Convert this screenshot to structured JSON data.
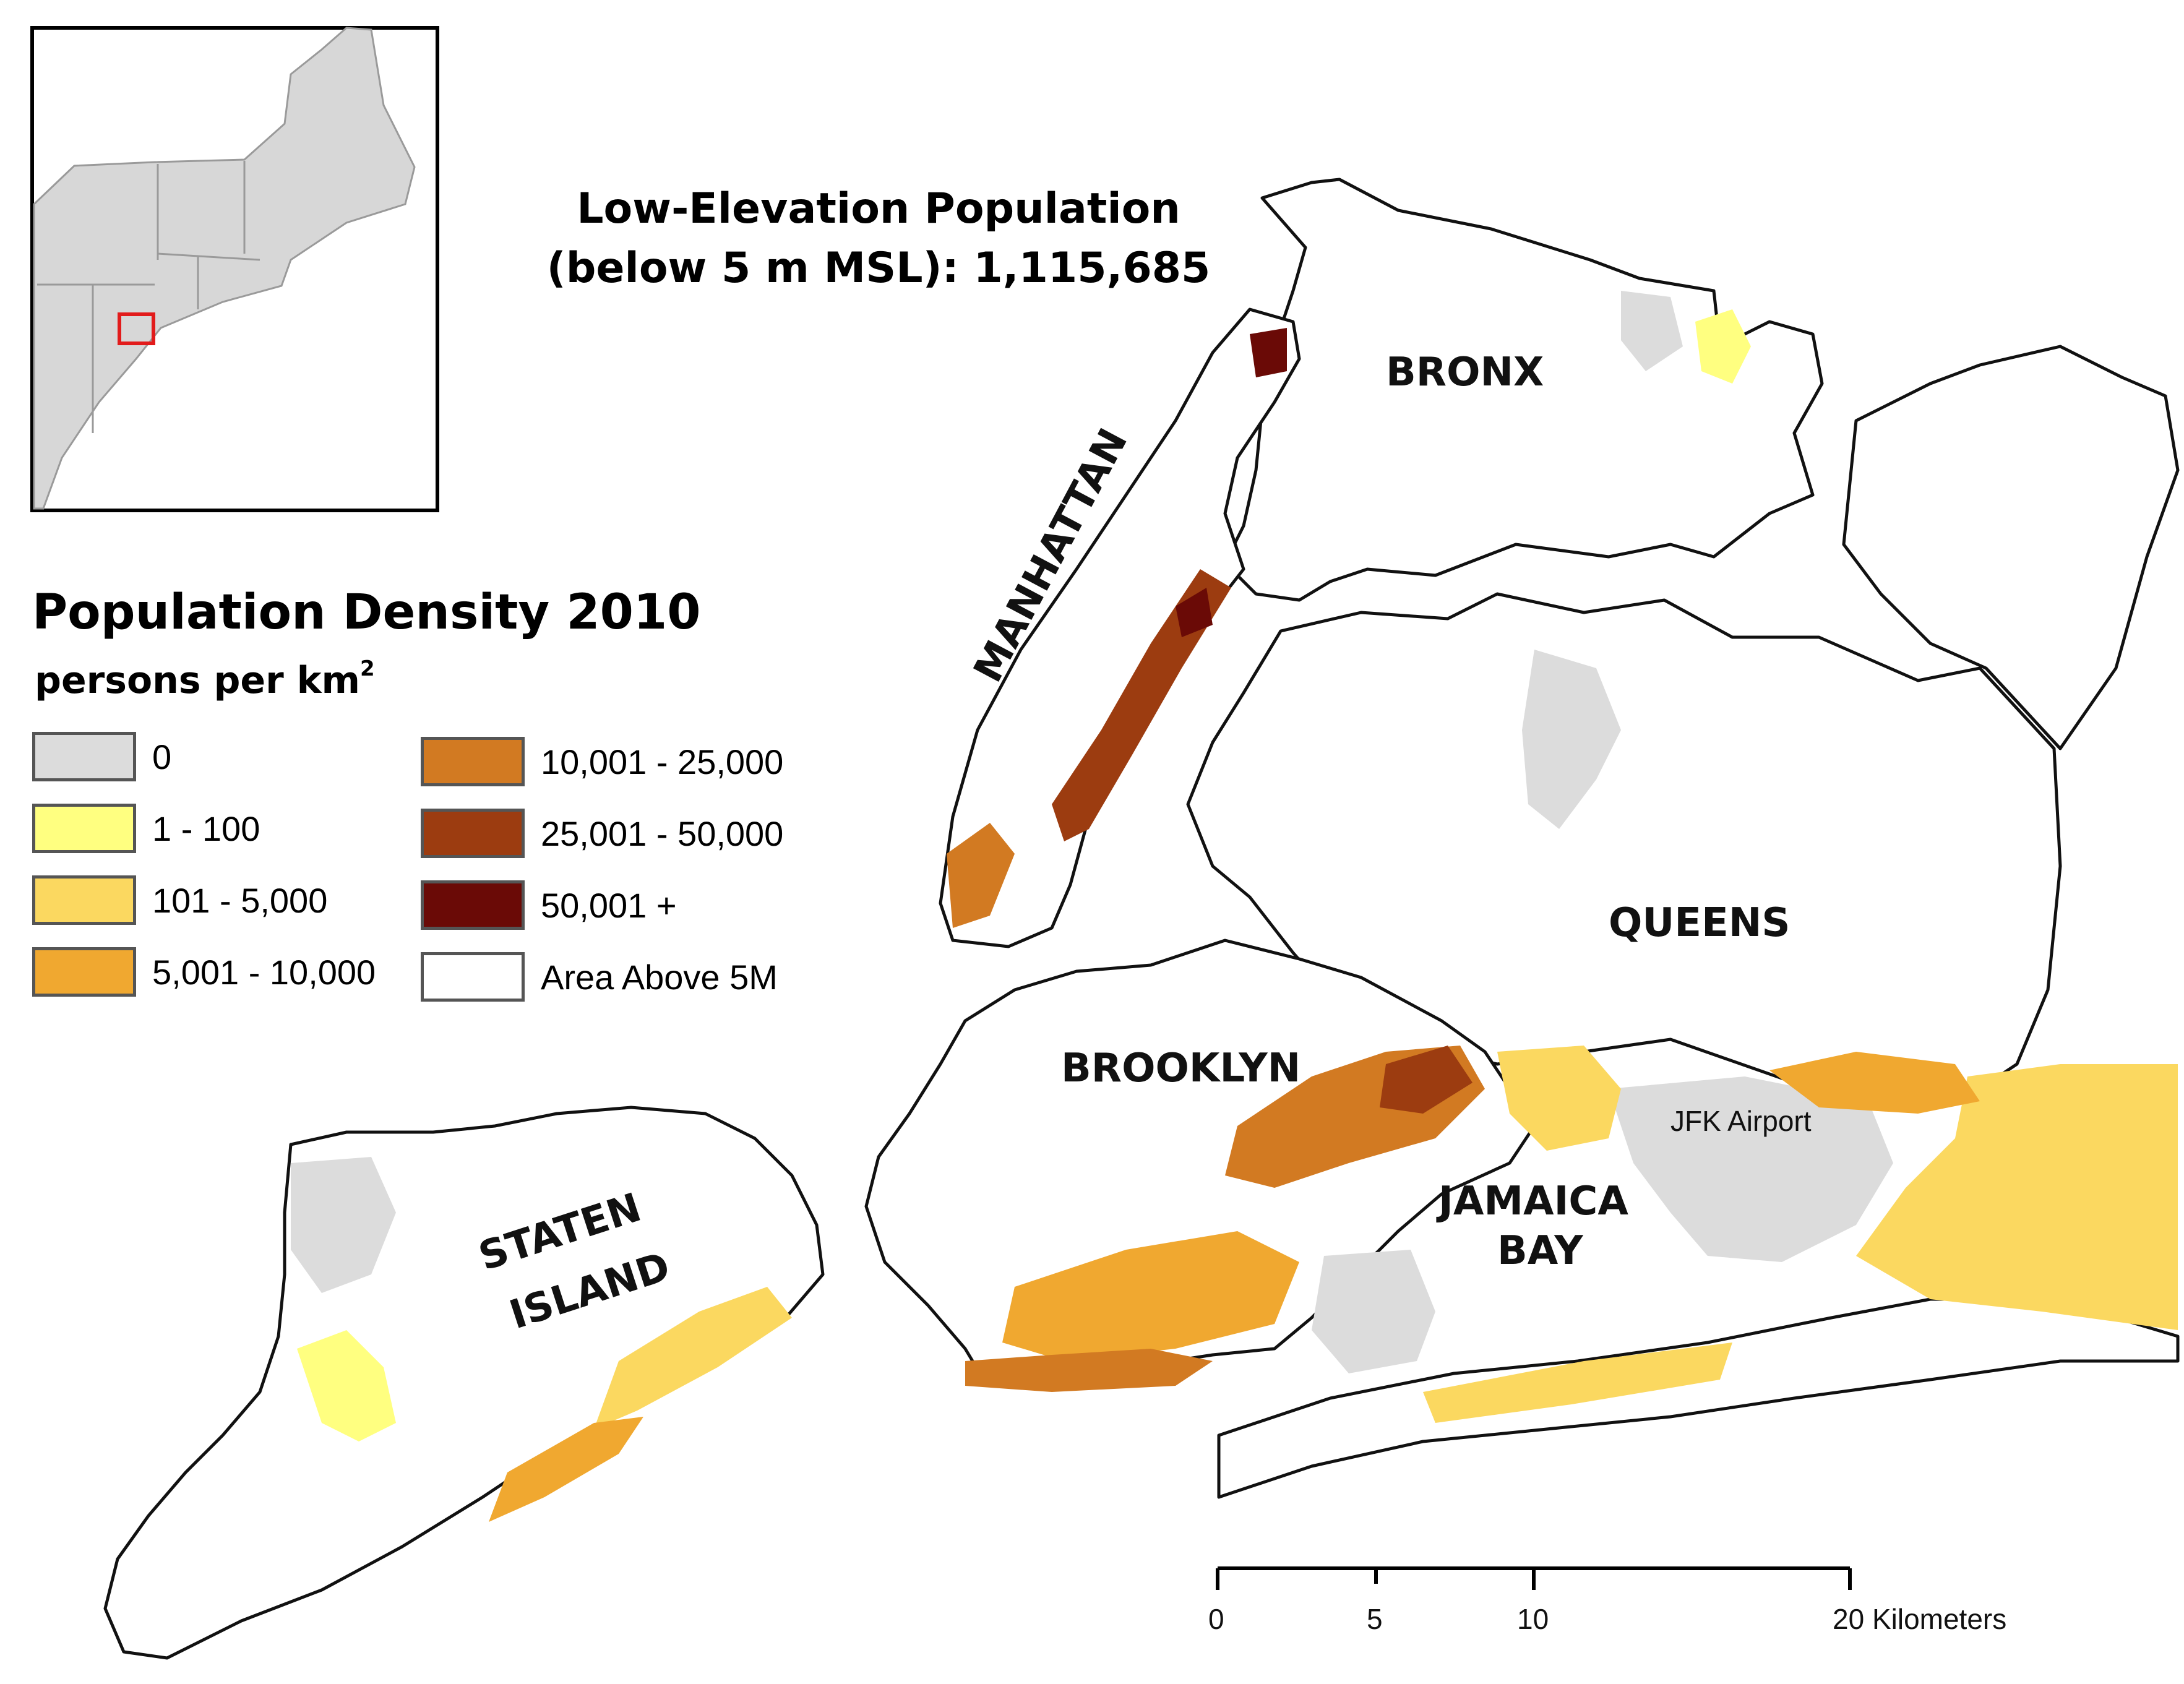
{
  "title": {
    "line1": "Low-Elevation Population",
    "line2": "(below 5 m MSL): 1,115,685"
  },
  "legend": {
    "title": "Population Density 2010",
    "subtitle": "persons per km",
    "subtitle_sup": "2",
    "items": [
      {
        "label": "0",
        "color": "#dcdcdc"
      },
      {
        "label": "1 - 100",
        "color": "#ffff80"
      },
      {
        "label": "101 - 5,000",
        "color": "#fbd860"
      },
      {
        "label": "5,001 - 10,000",
        "color": "#f0a830"
      },
      {
        "label": "10,001 - 25,000",
        "color": "#d27a22"
      },
      {
        "label": "25,001 - 50,000",
        "color": "#9c3c10"
      },
      {
        "label": "50,001 +",
        "color": "#6a0a06"
      },
      {
        "label": "Area Above 5M",
        "color": "#ffffff"
      }
    ]
  },
  "boroughs": {
    "bronx": "BRONX",
    "manhattan": "MANHATTAN",
    "queens": "QUEENS",
    "brooklyn": "BROOKLYN",
    "staten_line1": "STATEN",
    "staten_line2": "ISLAND",
    "jamaica_line1": "JAMAICA",
    "jamaica_line2": "BAY"
  },
  "landmarks": {
    "jfk": "JFK Airport"
  },
  "scale_bar": {
    "labels": [
      "0",
      "5",
      "10",
      "20 Kilometers"
    ],
    "values_km": [
      0,
      5,
      10,
      20
    ]
  },
  "inset": {
    "highlight_color": "#e21b1b"
  }
}
